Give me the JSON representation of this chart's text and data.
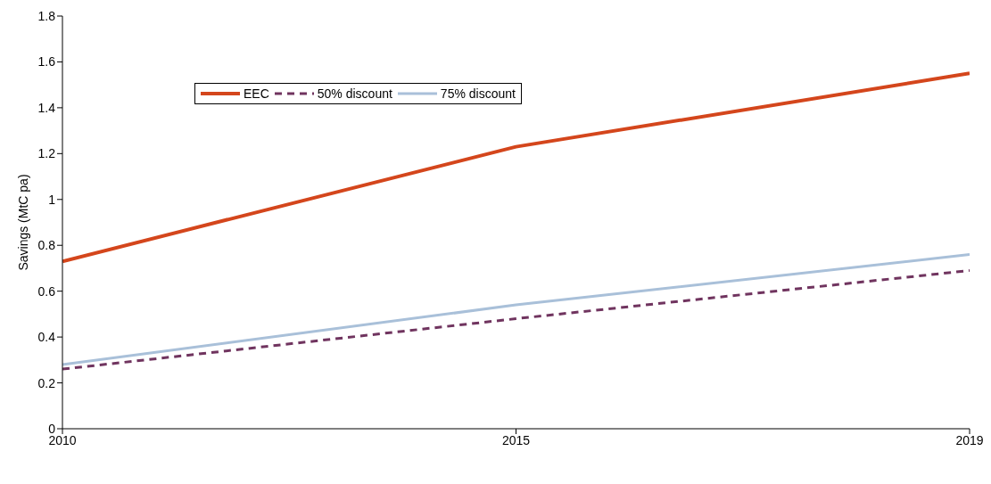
{
  "chart_data": {
    "type": "line",
    "ylabel": "Savings (MtC pa)",
    "categories": [
      "2010",
      "2015",
      "2019"
    ],
    "series": [
      {
        "name": "EEC",
        "color": "#d4461c",
        "values": [
          0.73,
          1.23,
          1.55
        ],
        "line_style": "solid"
      },
      {
        "name": "50% discount",
        "color": "#70345f",
        "values": [
          0.26,
          0.48,
          0.69
        ],
        "line_style": "dashed"
      },
      {
        "name": "75% discount",
        "color": "#a9c0d9",
        "values": [
          0.28,
          0.54,
          0.76
        ],
        "line_style": "solid"
      }
    ],
    "ylim": [
      0,
      1.8
    ],
    "yticks": [
      0,
      0.2,
      0.4,
      0.6,
      0.8,
      1,
      1.2,
      1.4,
      1.6,
      1.8
    ],
    "grid": false,
    "legend": "top left",
    "marker": "none"
  }
}
